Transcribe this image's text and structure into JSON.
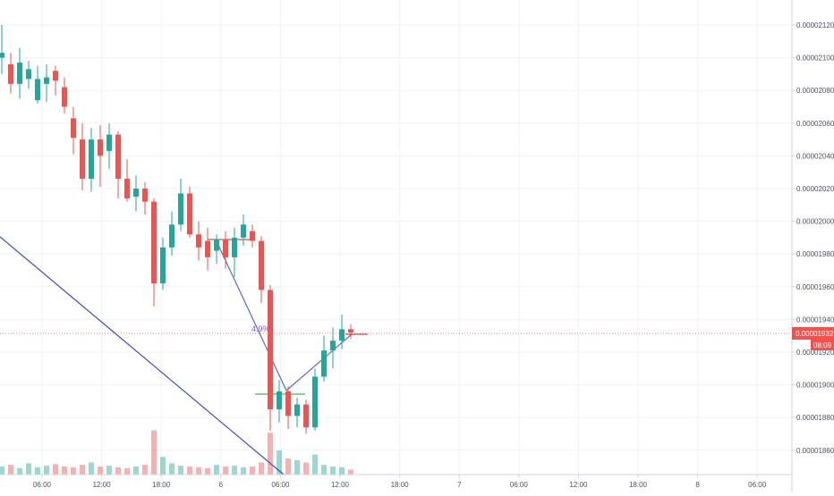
{
  "chart_data": {
    "type": "candlestick",
    "colors": {
      "up": "#26a69a",
      "down": "#ef5350",
      "grid": "#f0f3fa",
      "axis_text": "#4c525e",
      "axis_line": "#d1d4dc",
      "price_line": "#ef5350",
      "trendline": "#3f4cc2",
      "measure": "#5c6bc0",
      "green_mark": "#4caf50",
      "percent_text": "#7e57c2"
    },
    "y_axis": {
      "ticks": [
        "0.00002120",
        "0.00002100",
        "0.00002080",
        "0.00002060",
        "0.00002040",
        "0.00002020",
        "0.00002000",
        "0.00001980",
        "0.00001960",
        "0.00001940",
        "0.00001920",
        "0.00001900",
        "0.00001880",
        "0.00001860"
      ],
      "range": [
        1.851e-05,
        2.133e-05
      ]
    },
    "x_axis": {
      "ticks": [
        "06:00",
        "12:00",
        "18:00",
        "6",
        "06:00",
        "12:00",
        "18:00",
        "7",
        "06:00",
        "12:00",
        "18:00",
        "8",
        "06:00"
      ]
    },
    "current_price": {
      "label": "0.00001932",
      "value": 1.932e-05,
      "countdown": "08:09"
    },
    "annotation": {
      "text": "4.9%"
    },
    "series": [
      {
        "x": "Day5 00:30",
        "open": 2.1,
        "high": 2.12,
        "low": 2.09,
        "close": 2.103
      },
      {
        "x": "Day5 01:30",
        "open": 2.096,
        "high": 2.103,
        "low": 2.078,
        "close": 2.084
      },
      {
        "x": "Day5 02:30",
        "open": 2.084,
        "high": 2.106,
        "low": 2.075,
        "close": 2.097
      },
      {
        "x": "Day5 03:30",
        "open": 2.087,
        "high": 2.098,
        "low": 2.081,
        "close": 2.093
      },
      {
        "x": "Day5 04:30",
        "open": 2.074,
        "high": 2.095,
        "low": 2.072,
        "close": 2.087
      },
      {
        "x": "Day5 05:30",
        "open": 2.084,
        "high": 2.096,
        "low": 2.073,
        "close": 2.088
      },
      {
        "x": "Day5 06:30",
        "open": 2.092,
        "high": 2.095,
        "low": 2.077,
        "close": 2.086
      },
      {
        "x": "Day5 07:30",
        "open": 2.082,
        "high": 2.088,
        "low": 2.066,
        "close": 2.07
      },
      {
        "x": "Day5 08:30",
        "open": 2.063,
        "high": 2.07,
        "low": 2.041,
        "close": 2.051
      },
      {
        "x": "Day5 09:30",
        "open": 2.05,
        "high": 2.06,
        "low": 2.019,
        "close": 2.026
      },
      {
        "x": "Day5 10:30",
        "open": 2.026,
        "high": 2.057,
        "low": 2.018,
        "close": 2.05
      },
      {
        "x": "Day5 11:30",
        "open": 2.05,
        "high": 2.059,
        "low": 2.021,
        "close": 2.04
      },
      {
        "x": "Day5 12:30",
        "open": 2.043,
        "high": 2.06,
        "low": 2.032,
        "close": 2.053
      },
      {
        "x": "Day5 13:30",
        "open": 2.053,
        "high": 2.055,
        "low": 2.014,
        "close": 2.026
      },
      {
        "x": "Day5 14:30",
        "open": 2.026,
        "high": 2.038,
        "low": 2.012,
        "close": 2.014
      },
      {
        "x": "Day5 15:30",
        "open": 2.015,
        "high": 2.028,
        "low": 2.006,
        "close": 2.02
      },
      {
        "x": "Day5 16:30",
        "open": 2.02,
        "high": 2.024,
        "low": 2.004,
        "close": 2.012
      },
      {
        "x": "Day5 17:30",
        "open": 2.012,
        "high": 2.014,
        "low": 1.948,
        "close": 1.962
      },
      {
        "x": "Day5 18:30",
        "open": 1.962,
        "high": 1.99,
        "low": 1.958,
        "close": 1.984
      },
      {
        "x": "Day5 19:30",
        "open": 1.984,
        "high": 2.006,
        "low": 1.979,
        "close": 1.998
      },
      {
        "x": "Day5 20:30",
        "open": 1.998,
        "high": 2.026,
        "low": 1.994,
        "close": 2.017
      },
      {
        "x": "Day5 21:30",
        "open": 2.017,
        "high": 2.021,
        "low": 1.99,
        "close": 1.992
      },
      {
        "x": "Day5 22:30",
        "open": 1.992,
        "high": 2.0,
        "low": 1.976,
        "close": 1.984
      },
      {
        "x": "Day5 23:30",
        "open": 1.988,
        "high": 1.996,
        "low": 1.97,
        "close": 1.978
      },
      {
        "x": "Day6 00:30",
        "open": 1.982,
        "high": 1.992,
        "low": 1.974,
        "close": 1.989
      },
      {
        "x": "Day6 01:30",
        "open": 1.989,
        "high": 1.994,
        "low": 1.971,
        "close": 1.978
      },
      {
        "x": "Day6 02:30",
        "open": 1.978,
        "high": 1.996,
        "low": 1.966,
        "close": 1.99
      },
      {
        "x": "Day6 03:30",
        "open": 1.99,
        "high": 2.004,
        "low": 1.985,
        "close": 1.998
      },
      {
        "x": "Day6 04:30",
        "open": 1.994,
        "high": 1.998,
        "low": 1.984,
        "close": 1.988
      },
      {
        "x": "Day6 05:30",
        "open": 1.988,
        "high": 1.991,
        "low": 1.95,
        "close": 1.958
      },
      {
        "x": "Day6 06:30",
        "open": 1.958,
        "high": 1.961,
        "low": 1.872,
        "close": 1.885
      },
      {
        "x": "Day6 07:30",
        "open": 1.885,
        "high": 1.903,
        "low": 1.877,
        "close": 1.896
      },
      {
        "x": "Day6 08:30",
        "open": 1.896,
        "high": 1.899,
        "low": 1.873,
        "close": 1.881
      },
      {
        "x": "Day6 09:30",
        "open": 1.881,
        "high": 1.892,
        "low": 1.874,
        "close": 1.888
      },
      {
        "x": "Day6 10:30",
        "open": 1.888,
        "high": 1.891,
        "low": 1.87,
        "close": 1.874
      },
      {
        "x": "Day6 11:30",
        "open": 1.874,
        "high": 1.91,
        "low": 1.872,
        "close": 1.905
      },
      {
        "x": "Day6 12:30",
        "open": 1.905,
        "high": 1.93,
        "low": 1.902,
        "close": 1.921
      },
      {
        "x": "Day6 13:30",
        "open": 1.921,
        "high": 1.935,
        "low": 1.91,
        "close": 1.927
      },
      {
        "x": "Day6 14:30",
        "open": 1.927,
        "high": 1.943,
        "low": 1.922,
        "close": 1.934
      },
      {
        "x": "Day6 15:00",
        "open": 1.934,
        "high": 1.937,
        "low": 1.928,
        "close": 1.932
      }
    ],
    "volume_ratio": [
      0.1,
      0.12,
      0.08,
      0.14,
      0.09,
      0.11,
      0.13,
      0.1,
      0.09,
      0.12,
      0.15,
      0.1,
      0.11,
      0.09,
      0.08,
      0.1,
      0.12,
      0.55,
      0.22,
      0.14,
      0.11,
      0.1,
      0.09,
      0.08,
      0.12,
      0.1,
      0.11,
      0.09,
      0.1,
      0.15,
      0.52,
      0.3,
      0.2,
      0.18,
      0.15,
      0.25,
      0.12,
      0.1,
      0.09,
      0.06
    ]
  }
}
